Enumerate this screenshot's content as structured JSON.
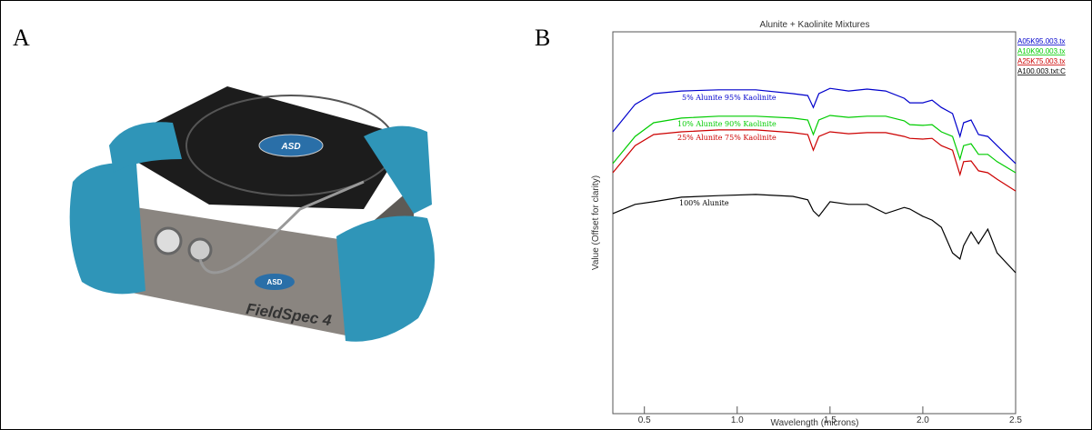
{
  "panels": {
    "left_label": "A",
    "right_label": "B",
    "device_logo": "ASD",
    "device_brand": "FieldSpec 4"
  },
  "chart_data": {
    "type": "line",
    "title": "Alunite + Kaolinite Mixtures",
    "x_label": "Wavelength (microns)",
    "y_label": "Value (Offset for clarity)",
    "x": [
      0.33,
      0.45,
      0.55,
      0.7,
      0.9,
      1.1,
      1.3,
      1.38,
      1.41,
      1.44,
      1.5,
      1.6,
      1.7,
      1.8,
      1.9,
      1.93,
      2.0,
      2.05,
      2.1,
      2.16,
      2.2,
      2.22,
      2.26,
      2.3,
      2.35,
      2.4,
      2.5
    ],
    "xlim": [
      0.33,
      2.5
    ],
    "ylim": [
      0,
      1
    ],
    "xticks": [
      0.5,
      {
        "value": 1,
        "label": "1.0"
      },
      1.5,
      {
        "value": 2,
        "label": "2.0"
      },
      2.5
    ],
    "series": [
      {
        "name": "A05K95.003.tx",
        "color": "#0000cc",
        "annotation": "5% Alunite 95% Kaolinite",
        "values": [
          0.738,
          0.81,
          0.838,
          0.845,
          0.848,
          0.848,
          0.838,
          0.833,
          0.802,
          0.838,
          0.852,
          0.845,
          0.85,
          0.845,
          0.826,
          0.814,
          0.814,
          0.821,
          0.802,
          0.786,
          0.726,
          0.762,
          0.769,
          0.731,
          0.726,
          0.702,
          0.655
        ]
      },
      {
        "name": "A10K90.003.tx",
        "color": "#00cc00",
        "annotation": "10% Alunite 90% Kaolinite",
        "values": [
          0.655,
          0.726,
          0.762,
          0.774,
          0.779,
          0.779,
          0.774,
          0.769,
          0.731,
          0.769,
          0.781,
          0.776,
          0.779,
          0.779,
          0.767,
          0.757,
          0.755,
          0.757,
          0.738,
          0.726,
          0.667,
          0.702,
          0.707,
          0.679,
          0.679,
          0.66,
          0.631
        ]
      },
      {
        "name": "A25K75.003.tx",
        "color": "#cc0000",
        "annotation": "25% Alunite 75% Kaolinite",
        "values": [
          0.631,
          0.702,
          0.731,
          0.738,
          0.743,
          0.743,
          0.736,
          0.731,
          0.69,
          0.726,
          0.738,
          0.733,
          0.736,
          0.736,
          0.726,
          0.721,
          0.719,
          0.721,
          0.702,
          0.69,
          0.626,
          0.66,
          0.662,
          0.636,
          0.631,
          0.614,
          0.583
        ]
      },
      {
        "name": "A100.003.txt:C",
        "color": "#000000",
        "annotation": "100% Alunite",
        "values": [
          0.524,
          0.548,
          0.555,
          0.567,
          0.571,
          0.574,
          0.569,
          0.56,
          0.531,
          0.517,
          0.555,
          0.548,
          0.548,
          0.524,
          0.54,
          0.536,
          0.517,
          0.507,
          0.488,
          0.421,
          0.405,
          0.44,
          0.476,
          0.445,
          0.483,
          0.421,
          0.369
        ]
      }
    ]
  }
}
